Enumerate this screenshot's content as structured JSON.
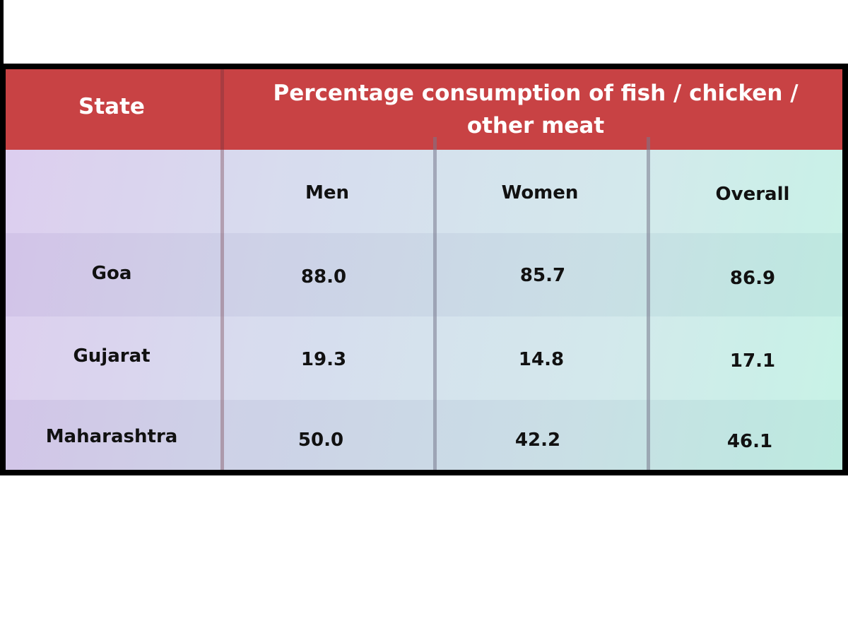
{
  "chart_data": {
    "type": "table",
    "header": {
      "state_label": "State",
      "group_label": "Percentage consumption of fish / chicken / other meat",
      "group_line1": "Percentage consumption of fish / chicken /",
      "group_line2": "other meat"
    },
    "columns": [
      "Men",
      "Women",
      "Overall"
    ],
    "rows": [
      {
        "state": "Goa",
        "men": "88.0",
        "women": "85.7",
        "overall": "86.9"
      },
      {
        "state": "Gujarat",
        "men": "19.3",
        "women": "14.8",
        "overall": "17.1"
      },
      {
        "state": "Maharashtra",
        "men": "50.0",
        "women": "42.2",
        "overall": "46.1"
      }
    ],
    "colors": {
      "header_bg": "#c84244",
      "header_text": "#ffffff",
      "body_gradient_start": "#d9c8ee",
      "body_gradient_end": "#c1f2e4",
      "body_text": "#111111"
    }
  }
}
